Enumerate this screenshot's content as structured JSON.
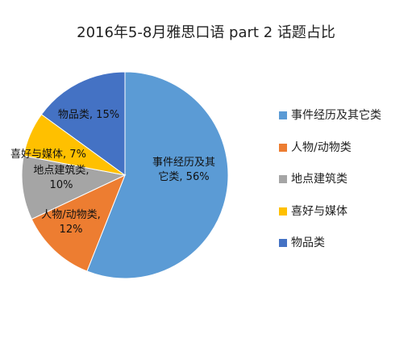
{
  "chart_data": {
    "type": "pie",
    "title": "2016年5-8月雅思口语 part 2 话题占比",
    "legend_position": "right",
    "slices": [
      {
        "name": "事件经历及其它类",
        "value": 56,
        "color": "#5B9BD5",
        "label_lines": [
          "事件经历及其",
          "它类, 56%"
        ]
      },
      {
        "name": "人物/动物类",
        "value": 12,
        "color": "#ED7D31",
        "label_lines": [
          "人物/动物类,",
          "12%"
        ]
      },
      {
        "name": "地点建筑类",
        "value": 10,
        "color": "#A5A5A5",
        "label_lines": [
          "地点建筑类,",
          "10%"
        ]
      },
      {
        "name": "喜好与媒体",
        "value": 7,
        "color": "#FFC000",
        "label_lines": [
          "喜好与媒体, 7%"
        ]
      },
      {
        "name": "物品类",
        "value": 15,
        "color": "#4472C4",
        "label_lines": [
          "物品类, 15%"
        ]
      }
    ]
  }
}
